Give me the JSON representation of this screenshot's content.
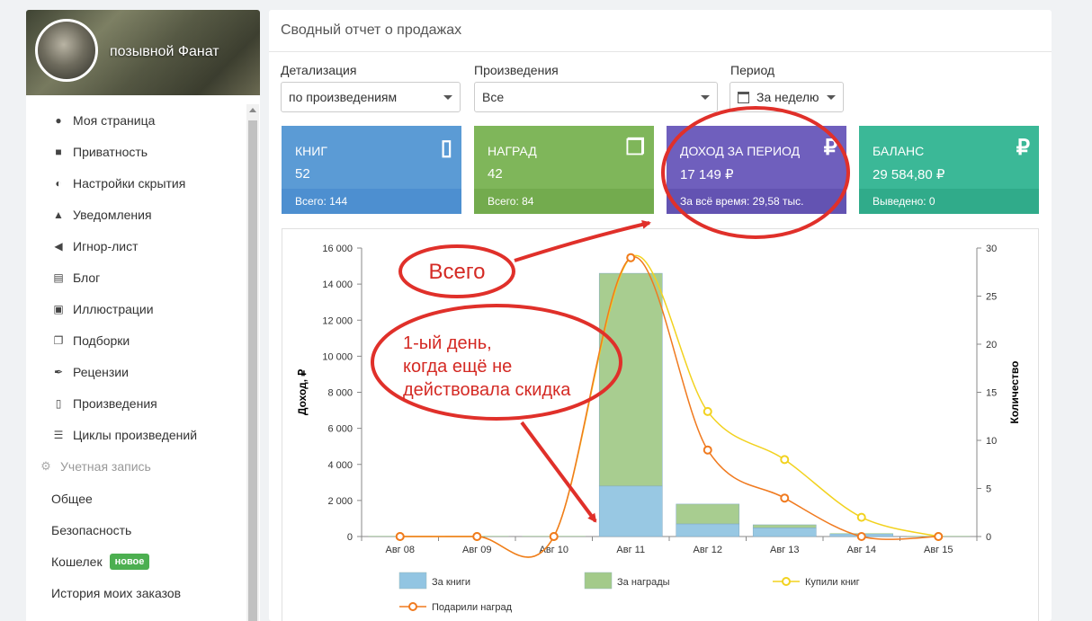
{
  "user": {
    "name": "позывной Фанат"
  },
  "sidebar": {
    "items": [
      {
        "label": "Моя страница",
        "icon": "user-icon"
      },
      {
        "label": "Приватность",
        "icon": "lock-icon"
      },
      {
        "label": "Настройки скрытия",
        "icon": "eye-slash-icon"
      },
      {
        "label": "Уведомления",
        "icon": "bell-icon"
      },
      {
        "label": "Игнор-лист",
        "icon": "mute-icon"
      },
      {
        "label": "Блог",
        "icon": "blog-icon"
      },
      {
        "label": "Иллюстрации",
        "icon": "image-icon"
      },
      {
        "label": "Подборки",
        "icon": "collection-icon"
      },
      {
        "label": "Рецензии",
        "icon": "quill-icon"
      },
      {
        "label": "Произведения",
        "icon": "book-icon"
      },
      {
        "label": "Циклы произведений",
        "icon": "stack-icon"
      }
    ],
    "account_section": "Учетная запись",
    "account_items": [
      {
        "label": "Общее"
      },
      {
        "label": "Безопасность"
      },
      {
        "label": "Кошелек",
        "badge": "новое"
      },
      {
        "label": "История моих заказов"
      }
    ]
  },
  "report": {
    "title": "Сводный отчет о продажах",
    "filters": {
      "detail_label": "Детализация",
      "detail_value": "по произведениям",
      "works_label": "Произведения",
      "works_value": "Все",
      "period_label": "Период",
      "period_value": "За неделю"
    },
    "cards": [
      {
        "title": "КНИГ",
        "value": "52",
        "footer": "Всего: 144",
        "icon": "book-icon",
        "color": "#5b9bd5"
      },
      {
        "title": "НАГРАД",
        "value": "42",
        "footer": "Всего: 84",
        "icon": "gift-icon",
        "color": "#7fb65a"
      },
      {
        "title": "ДОХОД ЗА ПЕРИОД",
        "value": "17 149 ₽",
        "footer": "За всё время: 29,58 тыс.",
        "icon": "ruble-icon",
        "color": "#6f5fbd"
      },
      {
        "title": "БАЛАНС",
        "value": "29 584,80 ₽",
        "footer": "Выведено: 0",
        "icon": "ruble-icon",
        "color": "#3bb897"
      }
    ]
  },
  "annotations": {
    "total": "Всего",
    "first_day_line1": "1-ый день,",
    "first_day_line2": "когда ещё не",
    "first_day_line3": "действовала скидка"
  },
  "chart_data": {
    "type": "bar",
    "categories": [
      "Авг 08",
      "Авг 09",
      "Авг 10",
      "Авг 11",
      "Авг 12",
      "Авг 13",
      "Авг 14",
      "Авг 15"
    ],
    "ylabel": "Доход, ₽",
    "ylabel_right": "Количество",
    "ylim": [
      0,
      16000
    ],
    "ylim_right": [
      0,
      30
    ],
    "yticks": [
      "0",
      "2 000",
      "4 000",
      "6 000",
      "8 000",
      "10 000",
      "12 000",
      "14 000",
      "16 000"
    ],
    "yticks_right": [
      "0",
      "5",
      "10",
      "15",
      "20",
      "25",
      "30"
    ],
    "stacked": true,
    "series": [
      {
        "name": "За книги",
        "type": "bar",
        "axis": "left",
        "color": "#92c5e2",
        "values": [
          0,
          0,
          0,
          2800,
          700,
          480,
          150,
          0
        ]
      },
      {
        "name": "За награды",
        "type": "bar",
        "axis": "left",
        "color": "#a3ca8a",
        "values": [
          0,
          0,
          0,
          11800,
          1100,
          170,
          0,
          0
        ]
      },
      {
        "name": "Купили книг",
        "type": "line",
        "axis": "right",
        "color": "#f2d21f",
        "values": [
          0,
          0,
          0,
          29,
          13,
          8,
          2,
          0
        ]
      },
      {
        "name": "Подарили наград",
        "type": "line",
        "axis": "right",
        "color": "#f07a1f",
        "values": [
          0,
          0,
          0,
          29,
          9,
          4,
          0,
          0
        ]
      }
    ],
    "legend": "bottom"
  }
}
